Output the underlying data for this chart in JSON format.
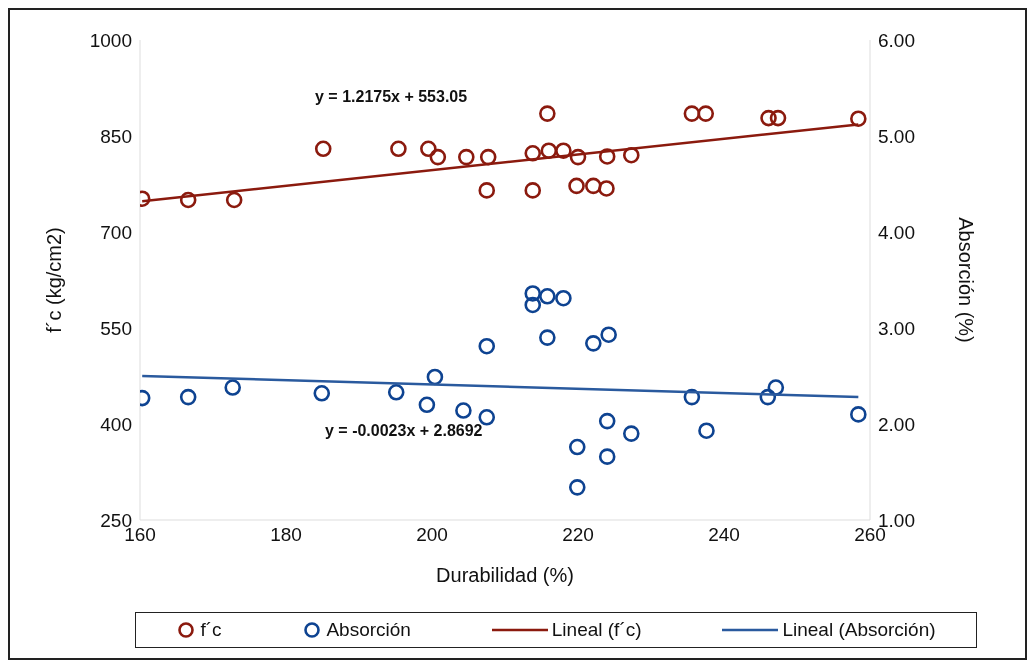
{
  "chart_data": {
    "type": "scatter",
    "xlabel": "Durabilidad (%)",
    "ylabel": "f´c (kg/cm2)",
    "y2label": "Absorción (%)",
    "xlim": [
      160,
      260
    ],
    "xticks": [
      160,
      180,
      200,
      220,
      240,
      260
    ],
    "ylim": [
      250,
      1000
    ],
    "yticks": [
      250,
      400,
      550,
      700,
      850,
      1000
    ],
    "y2lim": [
      1,
      6
    ],
    "y2ticks": [
      {
        "value": 1,
        "label": "1.00"
      },
      {
        "value": 2,
        "label": "2.00"
      },
      {
        "value": 3,
        "label": "3.00"
      },
      {
        "value": 4,
        "label": "4.00"
      },
      {
        "value": 5,
        "label": "5.00"
      },
      {
        "value": 6,
        "label": "6.00"
      }
    ],
    "marker": "circle",
    "legend": "bottom",
    "annotations": [
      "y = 1.2175x + 553.05",
      "y = -0.0023x + 2.8692"
    ],
    "series": [
      {
        "name": "f´c",
        "color": "#8b1a0e",
        "x": [
          160.3,
          166.6,
          172.9,
          185.1,
          195.4,
          199.5,
          200.8,
          204.7,
          207.7,
          207.5,
          213.8,
          213.8,
          215.8,
          216,
          218,
          220,
          219.8,
          222.1,
          223.9,
          224,
          227.3,
          235.6,
          237.5,
          246.1,
          247.4,
          258.4
        ],
        "values": [
          752,
          750,
          750,
          830,
          830,
          830,
          817,
          817,
          817,
          765,
          823,
          765,
          885,
          827,
          827,
          817,
          772,
          772,
          768,
          818,
          820,
          885,
          885,
          878,
          878,
          877
        ]
      },
      {
        "name": "Absorción",
        "axis": "y2",
        "color": "#0e4391",
        "x": [
          160.3,
          166.6,
          172.7,
          184.9,
          195.1,
          199.3,
          200.4,
          204.3,
          207.5,
          207.5,
          213.8,
          213.8,
          215.8,
          218,
          215.8,
          219.9,
          219.9,
          222.1,
          224.2,
          224,
          224,
          227.3,
          235.6,
          237.6,
          246,
          247.1,
          258.4
        ],
        "values": [
          2.27,
          2.28,
          2.38,
          2.32,
          2.33,
          2.2,
          2.49,
          2.14,
          2.07,
          2.81,
          3.36,
          3.24,
          3.33,
          3.31,
          2.9,
          1.76,
          1.34,
          2.84,
          2.93,
          2.03,
          1.66,
          1.9,
          2.28,
          1.93,
          2.28,
          2.38,
          2.1
        ]
      },
      {
        "name": "Lineal (f´c)",
        "type": "line",
        "marker": "none",
        "color": "#8b1a0e",
        "x": [
          160.3,
          258.4
        ],
        "values": [
          748,
          868
        ]
      },
      {
        "name": "Lineal (Absorción)",
        "type": "line",
        "marker": "none",
        "axis": "y2",
        "color": "#2a5a9e",
        "x": [
          160.3,
          258.4
        ],
        "values": [
          2.5,
          2.28
        ]
      }
    ]
  }
}
